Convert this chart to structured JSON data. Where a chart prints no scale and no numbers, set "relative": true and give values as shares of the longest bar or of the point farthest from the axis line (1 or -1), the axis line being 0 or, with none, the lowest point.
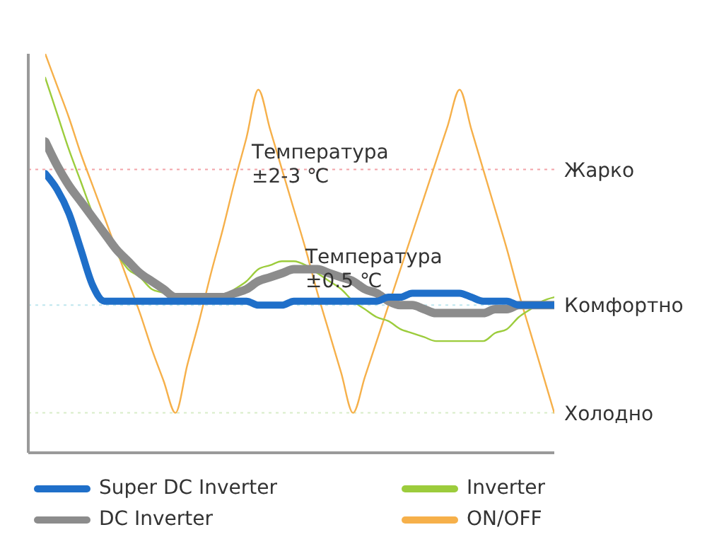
{
  "chart_data": {
    "type": "line",
    "relative": true,
    "legend": "bottom",
    "marker": "none",
    "line_style": "solid",
    "categories": [
      null,
      null,
      null,
      null,
      null,
      null,
      null,
      null,
      null,
      null,
      null,
      null,
      null,
      null,
      null,
      null,
      null,
      null,
      null,
      null,
      null,
      null,
      null,
      null,
      null,
      null,
      null,
      null,
      null,
      null,
      null,
      null,
      null,
      null,
      null,
      null,
      null,
      null,
      null,
      null,
      null,
      null,
      null,
      null
    ],
    "series": [
      {
        "name": "Super DC Inverter",
        "color": "#1f6fc9",
        "values": [
          0.7,
          0.66,
          0.6,
          0.51,
          0.42,
          0.38,
          0.38,
          0.38,
          0.38,
          0.38,
          0.38,
          0.38,
          0.38,
          0.38,
          0.38,
          0.38,
          0.38,
          0.38,
          0.37,
          0.37,
          0.37,
          0.38,
          0.38,
          0.38,
          0.38,
          0.38,
          0.38,
          0.38,
          0.38,
          0.39,
          0.39,
          0.4,
          0.4,
          0.4,
          0.4,
          0.4,
          0.39,
          0.38,
          0.38,
          0.38,
          0.37,
          0.37,
          0.37,
          0.37
        ]
      },
      {
        "name": "DC Inverter",
        "color": "#8c8c8c",
        "values": [
          0.78,
          0.72,
          0.67,
          0.63,
          0.59,
          0.55,
          0.51,
          0.48,
          0.45,
          0.43,
          0.41,
          0.39,
          0.39,
          0.39,
          0.39,
          0.39,
          0.4,
          0.41,
          0.43,
          0.44,
          0.45,
          0.46,
          0.46,
          0.46,
          0.45,
          0.44,
          0.43,
          0.41,
          0.4,
          0.38,
          0.37,
          0.37,
          0.36,
          0.35,
          0.35,
          0.35,
          0.35,
          0.35,
          0.36,
          0.36,
          0.37,
          0.37,
          0.37,
          0.37
        ]
      },
      {
        "name": "Inverter",
        "color": "#9ccc3c",
        "values": [
          0.94,
          0.85,
          0.76,
          0.68,
          0.6,
          0.54,
          0.5,
          0.46,
          0.44,
          0.41,
          0.4,
          0.38,
          0.38,
          0.38,
          0.38,
          0.39,
          0.41,
          0.43,
          0.46,
          0.47,
          0.48,
          0.48,
          0.47,
          0.45,
          0.43,
          0.41,
          0.38,
          0.36,
          0.34,
          0.33,
          0.31,
          0.3,
          0.29,
          0.28,
          0.28,
          0.28,
          0.28,
          0.28,
          0.3,
          0.31,
          0.34,
          0.36,
          0.38,
          0.39
        ]
      },
      {
        "name": "ON/OFF",
        "color": "#f6b04a",
        "values": [
          1.0,
          0.92,
          0.84,
          0.75,
          0.67,
          0.59,
          0.51,
          0.43,
          0.35,
          0.26,
          0.18,
          0.1,
          0.22,
          0.33,
          0.45,
          0.56,
          0.68,
          0.79,
          0.91,
          0.81,
          0.71,
          0.61,
          0.51,
          0.4,
          0.3,
          0.2,
          0.1,
          0.19,
          0.28,
          0.37,
          0.46,
          0.55,
          0.64,
          0.73,
          0.82,
          0.91,
          0.81,
          0.71,
          0.61,
          0.51,
          0.4,
          0.3,
          0.2,
          0.1
        ]
      }
    ],
    "ref_lines": [
      {
        "axis": "y",
        "value": 0.71,
        "label": "Жарко",
        "color": "#f3a3a8",
        "line_style": "dotted"
      },
      {
        "axis": "y",
        "value": 0.37,
        "label": "Комфортно",
        "color": "#bfe6ee",
        "line_style": "dotted"
      },
      {
        "axis": "y",
        "value": 0.1,
        "label": "Холодно",
        "color": "#d8edc8",
        "line_style": "dotted"
      }
    ],
    "annotations": [
      "Температура\n±2-3 ℃",
      "Температура\n±0.5 ℃"
    ]
  }
}
